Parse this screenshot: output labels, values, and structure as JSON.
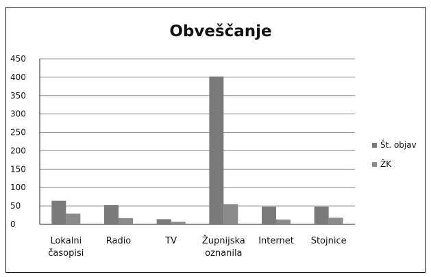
{
  "chart_data": {
    "type": "bar",
    "title": "Obveščanje",
    "categories": [
      [
        "Lokalni",
        "časopisi"
      ],
      [
        "Radio"
      ],
      [
        "TV"
      ],
      [
        "Župnijska",
        "oznanila"
      ],
      [
        "Internet"
      ],
      [
        "Stojnice"
      ]
    ],
    "series": [
      {
        "name": "Št. objav",
        "values": [
          64,
          52,
          14,
          402,
          48,
          48
        ],
        "color": "#7a7a7a"
      },
      {
        "name": "ŽK",
        "values": [
          29,
          17,
          7,
          55,
          13,
          18
        ],
        "color": "#8b8b8b"
      }
    ],
    "ylim": [
      0,
      450
    ],
    "yticks": [
      0,
      50,
      100,
      150,
      200,
      250,
      300,
      350,
      400,
      450
    ],
    "grid": true,
    "legend": "right"
  }
}
